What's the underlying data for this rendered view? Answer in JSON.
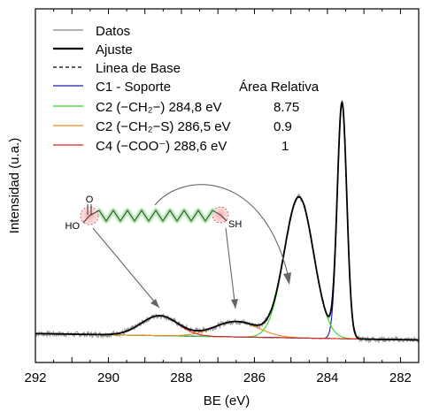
{
  "chart_data": {
    "type": "line",
    "xlabel": "BE (eV)",
    "ylabel": "Intensidad (u.a.)",
    "xlim": [
      292,
      281.5
    ],
    "x_reversed": true,
    "ylim": [
      -0.08,
      1.02
    ],
    "xticks": [
      292,
      290,
      288,
      286,
      284,
      282
    ],
    "legend": {
      "placement": "top-left",
      "entries": [
        {
          "label": "Datos",
          "color": "#999999",
          "style": "solid"
        },
        {
          "label": "Ajuste",
          "color": "#000000",
          "style": "solid"
        },
        {
          "label": "Linea de Base",
          "color": "#000000",
          "style": "dashed"
        },
        {
          "label": "C1 - Soporte",
          "color": "#1a1aa6",
          "style": "solid"
        },
        {
          "label": "C2 (−CH₂−) 284,8 eV",
          "color": "#2ed82e",
          "style": "solid"
        },
        {
          "label": "C2 (−CH₂−S) 286,5 eV",
          "color": "#ee8c1e",
          "style": "solid"
        },
        {
          "label": "C4 (−COO⁻) 288,6 eV",
          "color": "#dd2020",
          "style": "solid"
        }
      ],
      "area_header": "Área Relativa",
      "area_values": [
        "8.75",
        "0.9",
        "1"
      ]
    },
    "series": [
      {
        "name": "C1 - Soporte",
        "center": 283.6,
        "amplitude": 0.73,
        "sigma": 0.13
      },
      {
        "name": "C2 (−CH₂−) 284,8 eV",
        "center": 284.78,
        "amplitude": 0.438,
        "sigma": 0.4
      },
      {
        "name": "C2 (−CH₂−S) 286,5 eV",
        "center": 286.5,
        "amplitude": 0.048,
        "sigma": 0.6
      },
      {
        "name": "C4 (−COO⁻) 288,6 eV",
        "center": 288.6,
        "amplitude": 0.062,
        "sigma": 0.5
      }
    ],
    "baseline": {
      "start": 0.01,
      "end": -0.01
    },
    "annotations": {
      "molecule": {
        "left_group": "HO",
        "carbonyl_o": "O",
        "right_group": "SH"
      }
    }
  }
}
